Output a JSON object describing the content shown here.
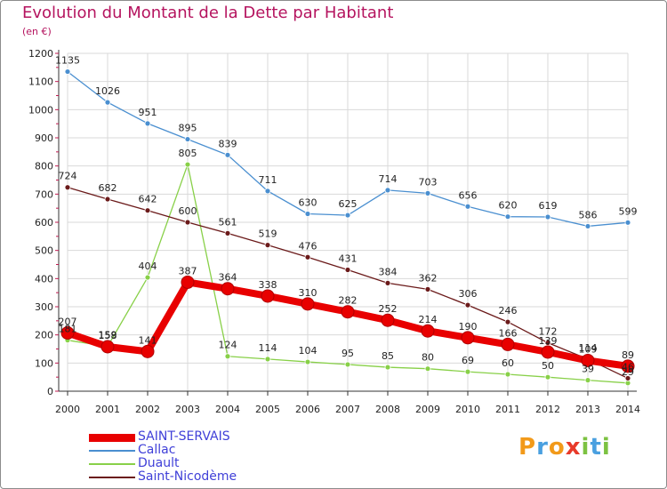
{
  "header": {
    "title": "Evolution du Montant de la Dette par Habitant",
    "subtitle": "(en €)"
  },
  "logo": {
    "text": "Proxiti"
  },
  "colors": {
    "title": "#b5145f",
    "legend_text": "#4040d8",
    "grid": "#d9d9d9",
    "axis": "#333333"
  },
  "chart_data": {
    "type": "line",
    "title": "Evolution du Montant de la Dette par Habitant",
    "subtitle": "(en €)",
    "xlabel": "",
    "ylabel": "",
    "x": [
      "2000",
      "2001",
      "2002",
      "2003",
      "2004",
      "2005",
      "2006",
      "2007",
      "2008",
      "2009",
      "2010",
      "2011",
      "2012",
      "2013",
      "2014"
    ],
    "ylim": [
      0,
      1200
    ],
    "yticks": [
      0,
      100,
      200,
      300,
      400,
      500,
      600,
      700,
      800,
      900,
      1000,
      1100,
      1200
    ],
    "grid": true,
    "legend_position": "bottom-left",
    "series": [
      {
        "name": "SAINT-SERVAIS",
        "color": "#e80000",
        "values": [
          207,
          158,
          141,
          387,
          364,
          338,
          310,
          282,
          252,
          214,
          190,
          166,
          139,
          109,
          89
        ]
      },
      {
        "name": "Callac",
        "color": "#4a8fd0",
        "values": [
          1135,
          1026,
          951,
          895,
          839,
          711,
          630,
          625,
          714,
          703,
          656,
          620,
          619,
          586,
          599
        ]
      },
      {
        "name": "Duault",
        "color": "#88d048",
        "values": [
          181,
          159,
          404,
          805,
          124,
          114,
          104,
          95,
          85,
          80,
          69,
          60,
          50,
          39,
          29
        ]
      },
      {
        "name": "Saint-Nicodème",
        "color": "#6b1a1a",
        "values": [
          724,
          682,
          642,
          600,
          561,
          519,
          476,
          431,
          384,
          362,
          306,
          246,
          172,
          114,
          46
        ]
      }
    ]
  }
}
